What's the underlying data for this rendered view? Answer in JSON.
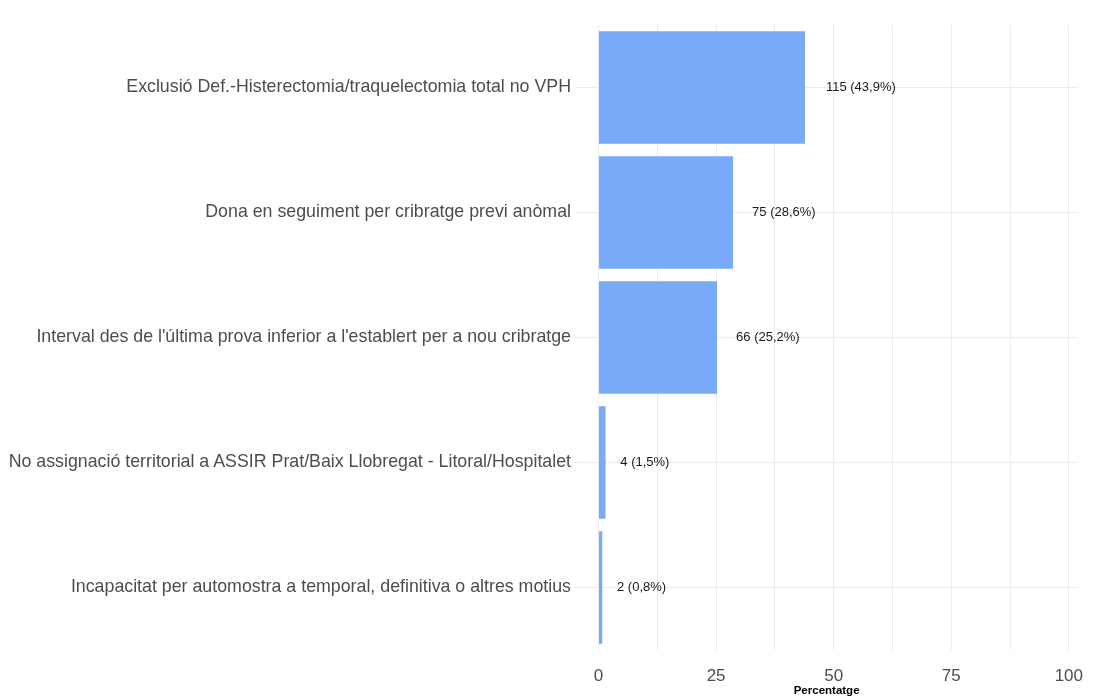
{
  "chart_data": {
    "type": "bar",
    "orientation": "horizontal",
    "categories": [
      "Exclusió Def.-Histerectomia/traquelectomia total no VPH",
      "Dona en seguiment per cribratge previ anòmal",
      "Interval des de l'última prova inferior a l'establert per a nou cribratge",
      "No assignació territorial a ASSIR Prat/Baix Llobregat - Litoral/Hospitalet",
      "Incapacitat per automostra a temporal, definitiva o altres motius"
    ],
    "values": [
      43.9,
      28.6,
      25.2,
      1.5,
      0.8
    ],
    "value_labels": [
      "115 (43,9%)",
      "75 (28,6%)",
      "66 (25,2%)",
      "4 (1,5%)",
      "2 (0,8%)"
    ],
    "color": "#79aaf9",
    "xlabel": "Percentatge",
    "xlim": [
      -5,
      102
    ],
    "xticks": [
      0,
      {
        "value": 12.5,
        "label": null
      },
      25,
      {
        "value": 37.5,
        "label": null
      },
      50,
      {
        "value": 62.5,
        "label": null
      },
      75,
      {
        "value": 87.5,
        "label": null
      },
      100
    ],
    "grid": true
  }
}
